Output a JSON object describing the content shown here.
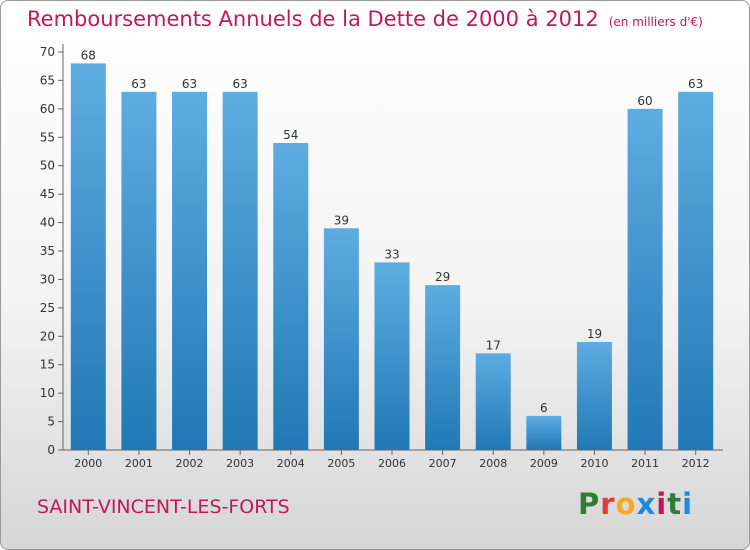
{
  "title": "Remboursements Annuels de la Dette de 2000 à 2012",
  "unit": "(en milliers d'€)",
  "commune": "SAINT-VINCENT-LES-FORTS",
  "brand": {
    "text": "Proxiti",
    "colors": [
      "#2e7d32",
      "#e53935",
      "#f9a825",
      "#1e88e5",
      "#c2185b",
      "#2e7d32",
      "#1e88e5"
    ]
  },
  "colors": {
    "bar_light": "#5dade2",
    "bar_dark": "#2178b4",
    "title": "#c2185b"
  },
  "chart_data": {
    "type": "bar",
    "categories": [
      "2000",
      "2001",
      "2002",
      "2003",
      "2004",
      "2005",
      "2006",
      "2007",
      "2008",
      "2009",
      "2010",
      "2011",
      "2012"
    ],
    "values": [
      68,
      63,
      63,
      63,
      54,
      39,
      33,
      29,
      17,
      6,
      19,
      60,
      63
    ],
    "yticks": [
      0,
      5,
      10,
      15,
      20,
      25,
      30,
      35,
      40,
      45,
      50,
      55,
      60,
      65,
      70
    ],
    "ylim": [
      0,
      70
    ],
    "grid": false,
    "data_labels": true
  }
}
